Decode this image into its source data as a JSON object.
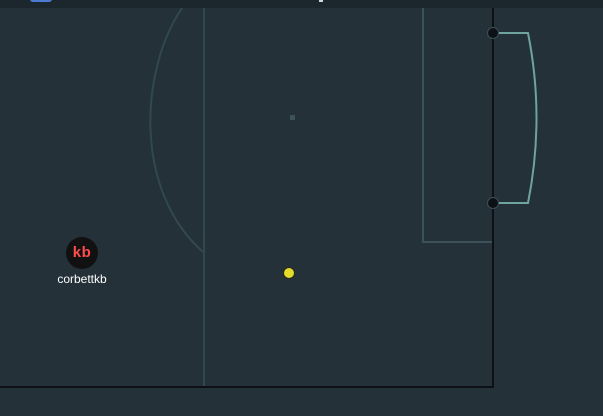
{
  "player": {
    "badge": "kb",
    "name": "corbettkb"
  },
  "icons": {
    "ball": "ball-icon",
    "player": "player-token-icon",
    "goal_post": "goal-post-icon"
  },
  "colors": {
    "pitch": "#243139",
    "lines": "#33474f",
    "goal": "#6fa3a0",
    "ball": "#e3dc2a",
    "badge_text": "#ff4d4d"
  }
}
